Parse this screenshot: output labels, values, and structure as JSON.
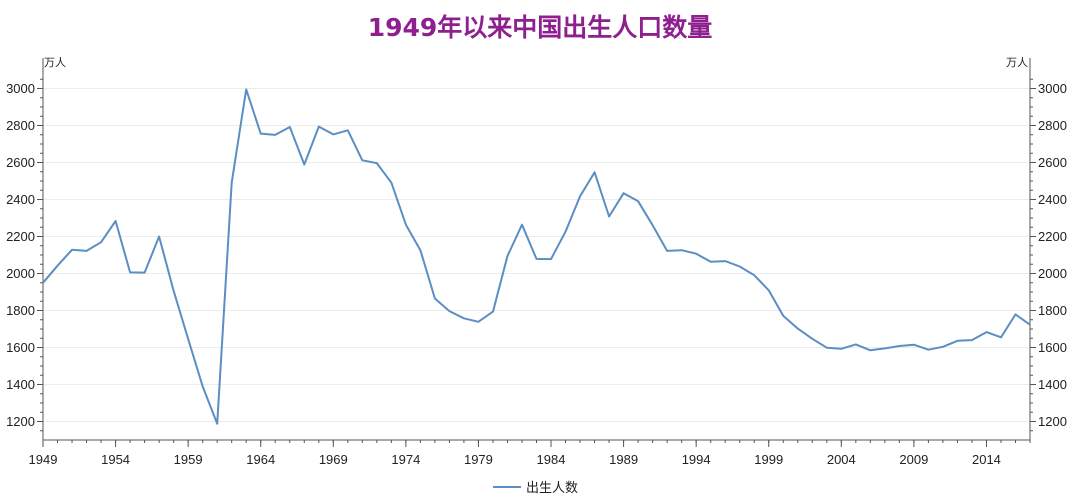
{
  "chart_data": {
    "type": "line",
    "title": "1949年以来中国出生人口数量",
    "y_unit_left": "万人",
    "y_unit_right": "万人",
    "ylim": [
      1100,
      3100
    ],
    "yticks": [
      1200,
      1400,
      1600,
      1800,
      2000,
      2200,
      2400,
      2600,
      2800,
      3000
    ],
    "xlim": [
      1949,
      2017
    ],
    "xticks": [
      1949,
      1954,
      1959,
      1964,
      1969,
      1974,
      1979,
      1984,
      1989,
      1994,
      1999,
      2004,
      2009,
      2014
    ],
    "grid": "horizontal",
    "legend_position": "bottom",
    "line_color": "#5b8ec2",
    "x": [
      1949,
      1950,
      1951,
      1952,
      1953,
      1954,
      1955,
      1956,
      1957,
      1958,
      1959,
      1960,
      1961,
      1962,
      1963,
      1964,
      1965,
      1966,
      1967,
      1968,
      1969,
      1970,
      1971,
      1972,
      1973,
      1974,
      1975,
      1976,
      1977,
      1978,
      1979,
      1980,
      1981,
      1982,
      1983,
      1984,
      1985,
      1986,
      1987,
      1988,
      1989,
      1990,
      1991,
      1992,
      1993,
      1994,
      1995,
      1996,
      1997,
      1998,
      1999,
      2000,
      2001,
      2002,
      2003,
      2004,
      2005,
      2006,
      2007,
      2008,
      2009,
      2010,
      2011,
      2012,
      2013,
      2014,
      2015,
      2016,
      2017
    ],
    "series": [
      {
        "name": "出生人数",
        "values": [
          1950,
          2042,
          2128,
          2122,
          2169,
          2284,
          2006,
          2005,
          2200,
          1907,
          1647,
          1389,
          1188,
          2491,
          2995,
          2756,
          2749,
          2792,
          2589,
          2794,
          2752,
          2774,
          2612,
          2597,
          2491,
          2264,
          2126,
          1865,
          1797,
          1758,
          1739,
          1794,
          2095,
          2264,
          2079,
          2078,
          2226,
          2417,
          2547,
          2308,
          2434,
          2391,
          2261,
          2122,
          2126,
          2107,
          2063,
          2067,
          2038,
          1991,
          1909,
          1771,
          1702,
          1647,
          1599,
          1593,
          1617,
          1585,
          1595,
          1608,
          1615,
          1588,
          1604,
          1636,
          1640,
          1683,
          1655,
          1779,
          1723
        ]
      }
    ]
  }
}
